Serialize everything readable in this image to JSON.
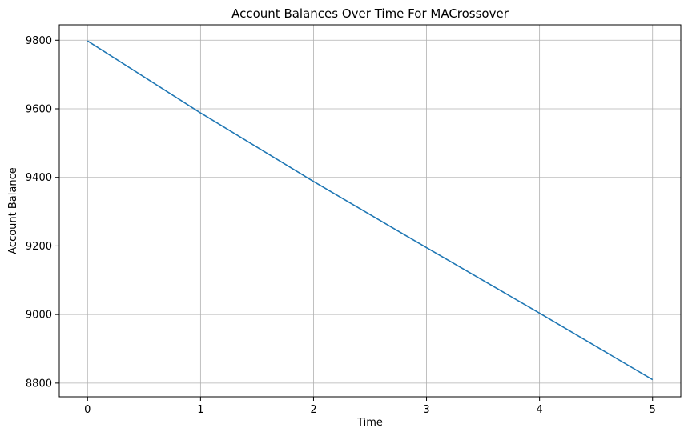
{
  "chart_data": {
    "type": "line",
    "title": "Account Balances Over Time For MACrossover",
    "xlabel": "Time",
    "ylabel": "Account Balance",
    "x": [
      0,
      1,
      2,
      3,
      4,
      5
    ],
    "series": [
      {
        "values": [
          9798,
          9588,
          9388,
          9195,
          9004,
          8810
        ]
      }
    ],
    "xlim": [
      -0.25,
      5.25
    ],
    "ylim": [
      8760,
      9845
    ],
    "xticks": [
      0,
      1,
      2,
      3,
      4,
      5
    ],
    "yticks": [
      8800,
      9000,
      9200,
      9400,
      9600,
      9800
    ],
    "grid": true,
    "legend": false,
    "line_color": "#1f77b4",
    "grid_color": "#b0b0b0"
  }
}
